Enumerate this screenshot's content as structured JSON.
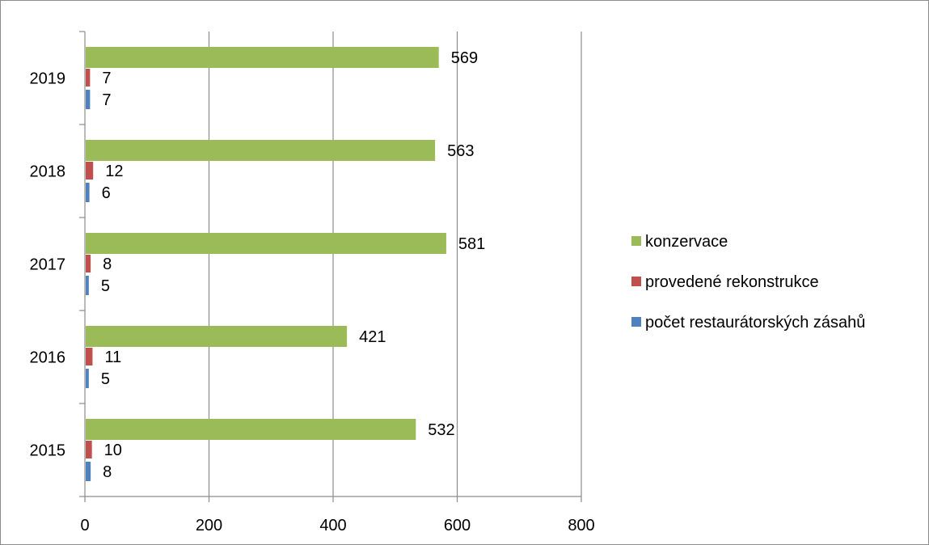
{
  "chart_data": {
    "type": "bar",
    "orientation": "horizontal",
    "title": "",
    "xlabel": "",
    "ylabel": "",
    "categories": [
      "2015",
      "2016",
      "2017",
      "2018",
      "2019"
    ],
    "series": [
      {
        "name": "počet restaurátorských zásahů",
        "color": "#4f81bd",
        "values": [
          8,
          5,
          5,
          6,
          7
        ]
      },
      {
        "name": "provedené rekonstrukce",
        "color": "#c0504d",
        "values": [
          10,
          11,
          8,
          12,
          7
        ]
      },
      {
        "name": "konzervace",
        "color": "#9bbb59",
        "values": [
          532,
          421,
          581,
          563,
          569
        ]
      }
    ],
    "xlim": [
      0,
      800
    ],
    "xticks": [
      "0",
      "200",
      "400",
      "600",
      "800"
    ],
    "grid": "vertical",
    "legend": "right"
  }
}
